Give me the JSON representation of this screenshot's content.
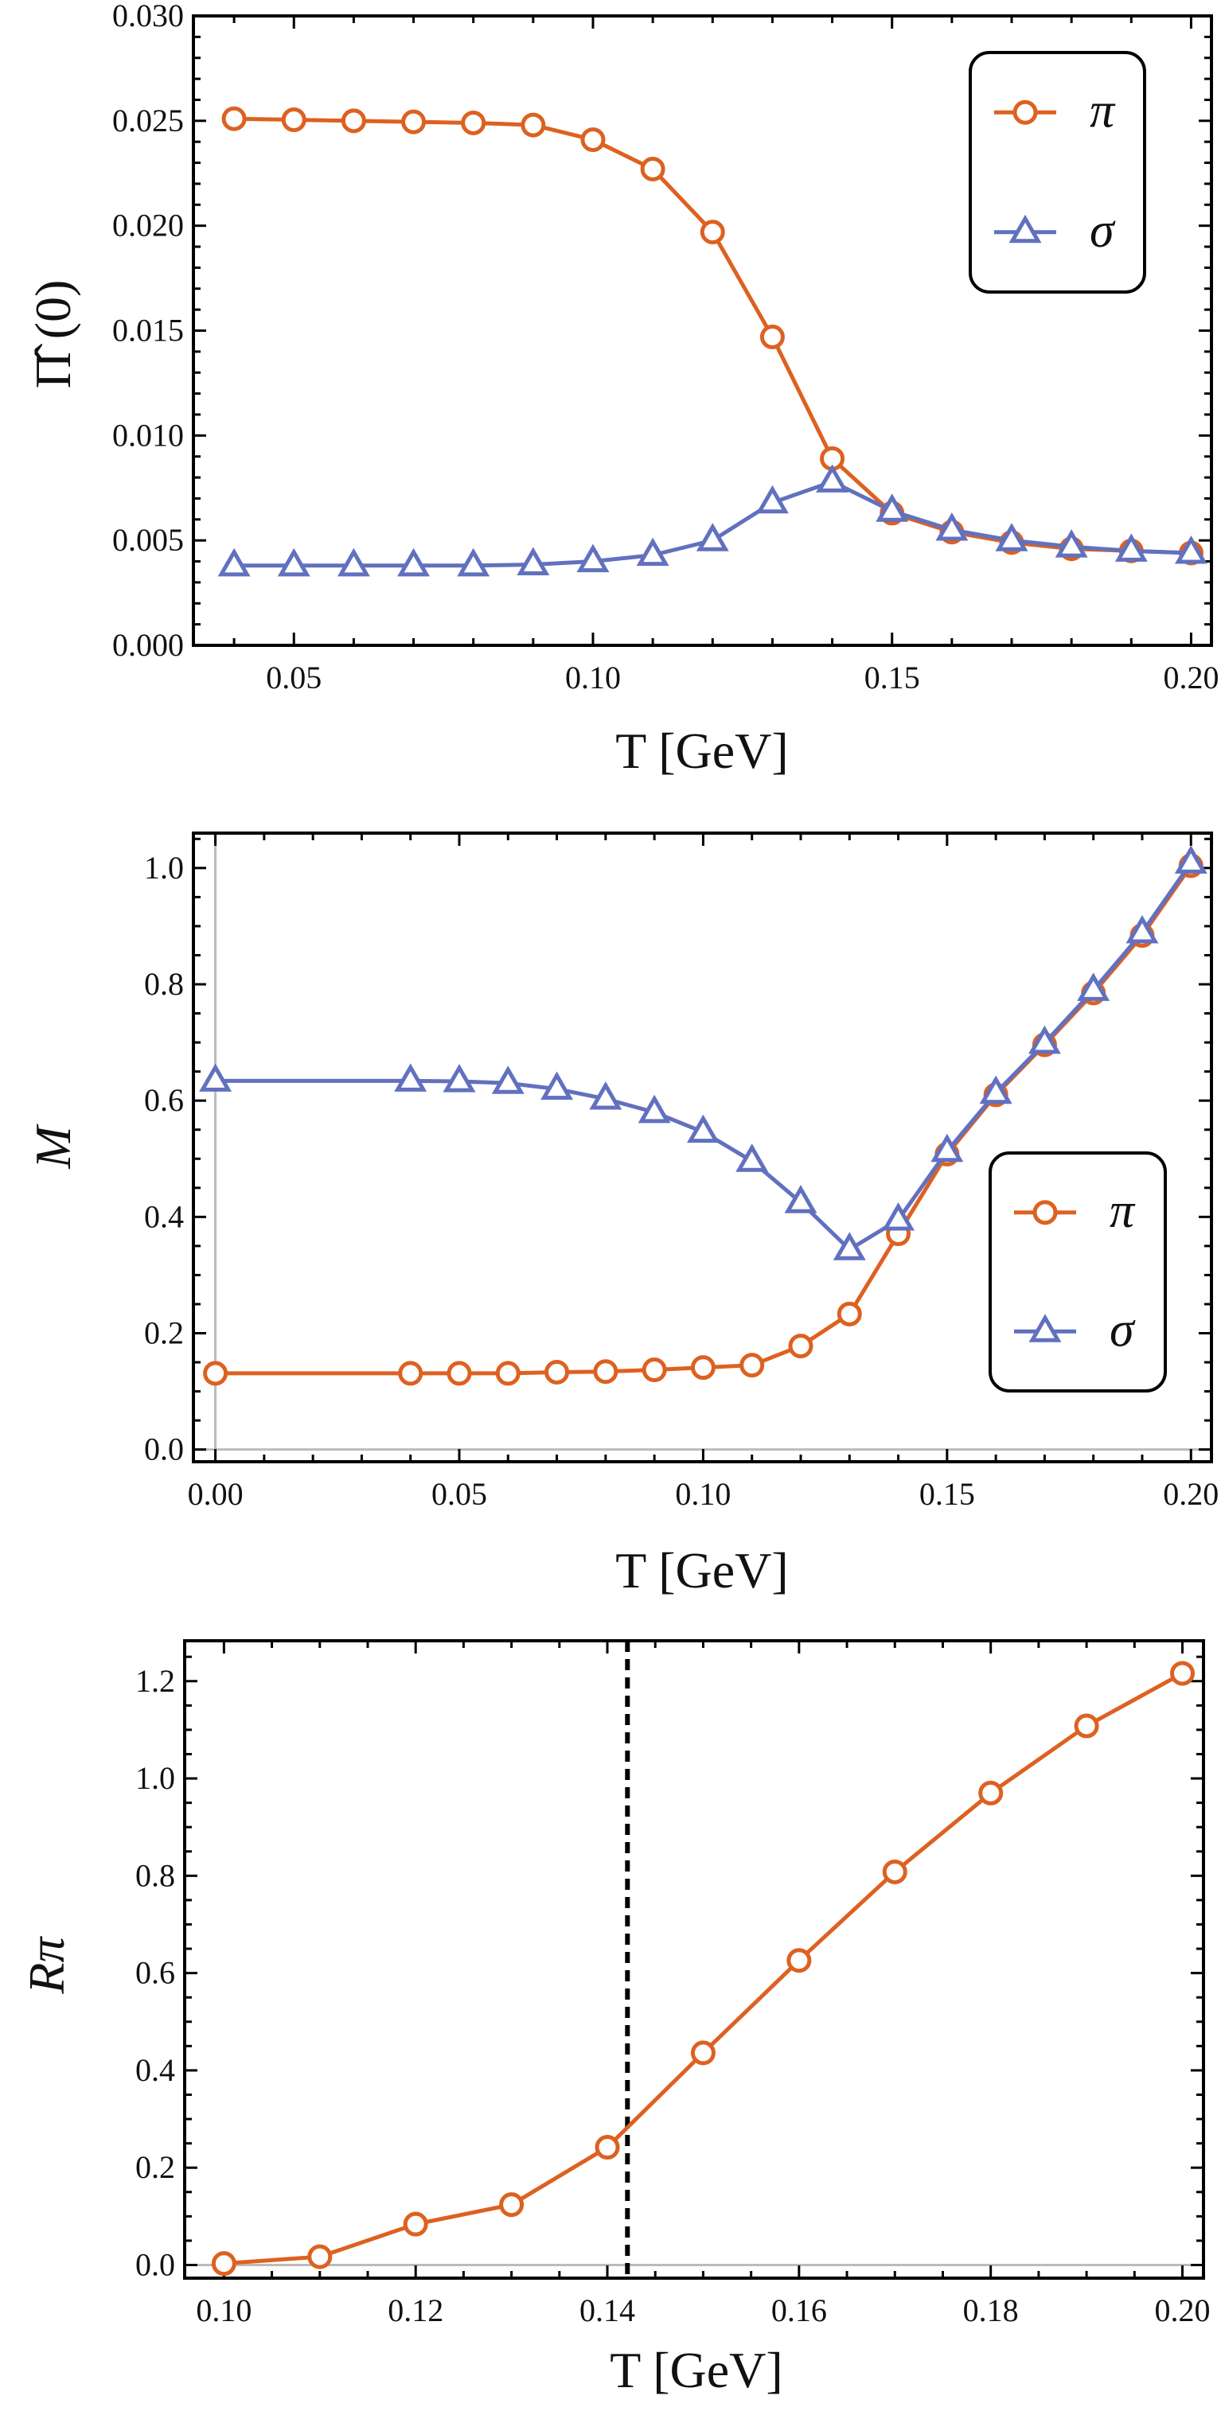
{
  "colors": {
    "pi": "#DD6120",
    "sigma": "#6171BF",
    "frame": "#000000",
    "zero_line": "#BBBBBB",
    "marker_fill": "#FFFFFF"
  },
  "chart_data": [
    {
      "type": "line",
      "xlabel": "T [GeV]",
      "ylabel": "Π̂ (0)",
      "xlim": [
        0.0332,
        0.2034
      ],
      "ylim": [
        0,
        0.03
      ],
      "xticks": [
        0.05,
        0.1,
        0.15,
        0.2
      ],
      "xtick_labels": [
        "0.05",
        "0.10",
        "0.15",
        "0.20"
      ],
      "xminor_step": 0.01,
      "yticks": [
        0,
        0.005,
        0.01,
        0.015,
        0.02,
        0.025,
        0.03
      ],
      "ytick_labels": [
        "0.000",
        "0.005",
        "0.010",
        "0.015",
        "0.020",
        "0.025",
        "0.030"
      ],
      "yminor_step": 0.001,
      "legend_position": "top-right",
      "grid": false,
      "x": [
        0.04,
        0.05,
        0.06,
        0.07,
        0.08,
        0.09,
        0.1,
        0.11,
        0.12,
        0.13,
        0.14,
        0.15,
        0.16,
        0.17,
        0.18,
        0.19,
        0.2
      ],
      "series": [
        {
          "name": "π",
          "marker": "circle",
          "color_key": "pi",
          "values": [
            0.0251,
            0.02505,
            0.025,
            0.02495,
            0.0249,
            0.0248,
            0.0241,
            0.0227,
            0.0197,
            0.0147,
            0.0089,
            0.0063,
            0.0054,
            0.0049,
            0.0046,
            0.0045,
            0.0044
          ]
        },
        {
          "name": "σ",
          "marker": "triangle",
          "color_key": "sigma",
          "values": [
            0.0038,
            0.0038,
            0.0038,
            0.0038,
            0.0038,
            0.00385,
            0.004,
            0.0043,
            0.005,
            0.0068,
            0.0078,
            0.0064,
            0.0055,
            0.005,
            0.0047,
            0.0045,
            0.0044
          ]
        }
      ]
    },
    {
      "type": "line",
      "xlabel": "T [GeV]",
      "ylabel": "M",
      "xlim": [
        -0.0045,
        0.2042
      ],
      "ylim": [
        -0.021,
        1.06
      ],
      "xticks": [
        0,
        0.05,
        0.1,
        0.15,
        0.2
      ],
      "xtick_labels": [
        "0.00",
        "0.05",
        "0.10",
        "0.15",
        "0.20"
      ],
      "xminor_step": 0.01,
      "yticks": [
        0,
        0.2,
        0.4,
        0.6,
        0.8,
        1.0
      ],
      "ytick_labels": [
        "0.0",
        "0.2",
        "0.4",
        "0.6",
        "0.8",
        "1.0"
      ],
      "yminor_step": 0.05,
      "zero_lines": {
        "x": 0,
        "y": 0
      },
      "legend_position": "center-right",
      "grid": false,
      "x": [
        0,
        0.04,
        0.05,
        0.06,
        0.07,
        0.08,
        0.09,
        0.1,
        0.11,
        0.12,
        0.13,
        0.14,
        0.15,
        0.16,
        0.17,
        0.18,
        0.19,
        0.2
      ],
      "series": [
        {
          "name": "π",
          "marker": "circle",
          "color_key": "pi",
          "values": [
            0.131,
            0.131,
            0.131,
            0.131,
            0.133,
            0.134,
            0.137,
            0.141,
            0.145,
            0.178,
            0.233,
            0.371,
            0.508,
            0.61,
            0.696,
            0.785,
            0.884,
            1.004
          ]
        },
        {
          "name": "σ",
          "marker": "triangle",
          "color_key": "sigma",
          "values": [
            0.634,
            0.634,
            0.633,
            0.63,
            0.62,
            0.603,
            0.58,
            0.546,
            0.496,
            0.425,
            0.344,
            0.395,
            0.513,
            0.613,
            0.699,
            0.79,
            0.889,
            1.009
          ]
        }
      ]
    },
    {
      "type": "line",
      "xlabel": "T [GeV]",
      "ylabel": "Rπ",
      "xlim": [
        0.0959,
        0.2022
      ],
      "ylim": [
        -0.027,
        1.283
      ],
      "xticks": [
        0.1,
        0.12,
        0.14,
        0.16,
        0.18,
        0.2
      ],
      "xtick_labels": [
        "0.10",
        "0.12",
        "0.14",
        "0.16",
        "0.18",
        "0.20"
      ],
      "xminor_step": 0.005,
      "yticks": [
        0,
        0.2,
        0.4,
        0.6,
        0.8,
        1.0,
        1.2
      ],
      "ytick_labels": [
        "0.0",
        "0.2",
        "0.4",
        "0.6",
        "0.8",
        "1.0",
        "1.2"
      ],
      "yminor_step": 0.05,
      "zero_lines": {
        "y": 0
      },
      "vertical_dashed_line_x": 0.1421,
      "grid": false,
      "x": [
        0.1,
        0.11,
        0.12,
        0.13,
        0.14,
        0.15,
        0.16,
        0.17,
        0.18,
        0.19,
        0.2
      ],
      "series": [
        {
          "marker": "circle",
          "color_key": "pi",
          "values": [
            0.003,
            0.017,
            0.084,
            0.124,
            0.242,
            0.436,
            0.626,
            0.808,
            0.97,
            1.108,
            1.216
          ]
        }
      ]
    }
  ]
}
